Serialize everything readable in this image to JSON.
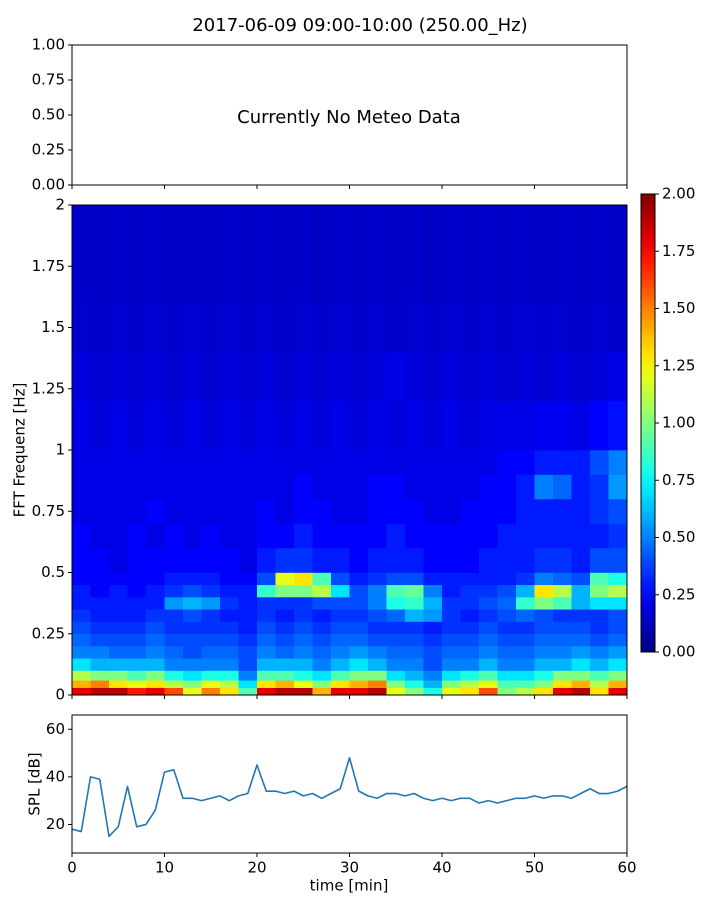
{
  "chart_data": [
    {
      "type": "annotation",
      "title": "2017-06-09 09:00-10:00 (250.00_Hz)",
      "annotation": "Currently No Meteo Data",
      "xlim": [
        0,
        60
      ],
      "xticks": [
        0,
        10,
        20,
        30,
        40,
        50,
        60
      ],
      "ylim": [
        0,
        1
      ],
      "yticks": [
        {
          "value": 0,
          "label": "0.00"
        },
        {
          "value": 0.25,
          "label": "0.25"
        },
        {
          "value": 0.5,
          "label": "0.50"
        },
        {
          "value": 0.75,
          "label": "0.75"
        },
        {
          "value": 1,
          "label": "1.00"
        }
      ]
    },
    {
      "type": "heatmap",
      "y_label": "FFT Frequenz [Hz]",
      "colormap": "jet",
      "xlim": [
        0,
        60
      ],
      "xticks": [
        0,
        10,
        20,
        30,
        40,
        50,
        60
      ],
      "ylim": [
        0,
        2
      ],
      "yticks": [
        0,
        0.25,
        0.5,
        0.75,
        1,
        1.25,
        1.5,
        1.75,
        2
      ],
      "x_bins": [
        0,
        2,
        4,
        6,
        8,
        10,
        12,
        14,
        16,
        18,
        20,
        22,
        24,
        26,
        28,
        30,
        32,
        34,
        36,
        38,
        40,
        42,
        44,
        46,
        48,
        50,
        52,
        54,
        56,
        58,
        60
      ],
      "y_bins": [
        0,
        0.03,
        0.06,
        0.1,
        0.15,
        0.2,
        0.25,
        0.3,
        0.35,
        0.4,
        0.45,
        0.5,
        0.6,
        0.7,
        0.8,
        0.9,
        1.0,
        1.2,
        1.4,
        1.6,
        2.0
      ],
      "clim": [
        0,
        2
      ],
      "cticks": [
        {
          "value": 0,
          "label": "0.00"
        },
        {
          "value": 0.25,
          "label": "0.25"
        },
        {
          "value": 0.5,
          "label": "0.50"
        },
        {
          "value": 0.75,
          "label": "0.75"
        },
        {
          "value": 1,
          "label": "1.00"
        },
        {
          "value": 1.25,
          "label": "1.25"
        },
        {
          "value": 1.5,
          "label": "1.50"
        },
        {
          "value": 1.75,
          "label": "1.75"
        },
        {
          "value": 2,
          "label": "2.00"
        }
      ],
      "values": [
        [
          1.8,
          1.9,
          1.9,
          1.7,
          1.8,
          1.6,
          1.2,
          1.5,
          1.3,
          0.9,
          1.8,
          1.9,
          1.9,
          1.4,
          1.8,
          1.8,
          1.9,
          1.2,
          1.0,
          0.8,
          1.2,
          1.3,
          1.6,
          1.0,
          1.1,
          1.3,
          1.8,
          1.9,
          1.3,
          1.8
        ],
        [
          1.4,
          1.5,
          1.3,
          1.2,
          1.3,
          1.1,
          1.0,
          1.2,
          1.1,
          0.7,
          1.3,
          1.4,
          1.2,
          1.0,
          1.3,
          1.4,
          1.5,
          1.0,
          0.8,
          0.6,
          1.0,
          1.1,
          1.2,
          0.9,
          0.9,
          1.0,
          1.3,
          1.4,
          1.1,
          1.4
        ],
        [
          1.1,
          1.0,
          1.0,
          0.9,
          1.0,
          0.8,
          0.7,
          0.8,
          0.8,
          0.5,
          0.9,
          0.9,
          0.8,
          0.7,
          0.9,
          1.0,
          1.0,
          0.7,
          0.6,
          0.5,
          0.7,
          0.8,
          0.9,
          0.7,
          0.7,
          0.8,
          1.0,
          1.0,
          0.9,
          1.0
        ],
        [
          0.7,
          0.6,
          0.6,
          0.6,
          0.6,
          0.5,
          0.5,
          0.5,
          0.5,
          0.4,
          0.6,
          0.6,
          0.6,
          0.5,
          0.6,
          0.7,
          0.6,
          0.5,
          0.5,
          0.4,
          0.5,
          0.5,
          0.6,
          0.5,
          0.5,
          0.6,
          0.6,
          0.7,
          0.6,
          0.7
        ],
        [
          0.5,
          0.5,
          0.45,
          0.45,
          0.5,
          0.45,
          0.4,
          0.45,
          0.45,
          0.4,
          0.5,
          0.45,
          0.5,
          0.45,
          0.5,
          0.55,
          0.5,
          0.45,
          0.45,
          0.4,
          0.45,
          0.45,
          0.5,
          0.45,
          0.45,
          0.5,
          0.5,
          0.55,
          0.5,
          0.55
        ],
        [
          0.45,
          0.4,
          0.4,
          0.4,
          0.45,
          0.4,
          0.4,
          0.4,
          0.4,
          0.35,
          0.45,
          0.4,
          0.45,
          0.4,
          0.45,
          0.45,
          0.4,
          0.4,
          0.4,
          0.35,
          0.4,
          0.4,
          0.45,
          0.4,
          0.4,
          0.45,
          0.45,
          0.45,
          0.4,
          0.45
        ],
        [
          0.4,
          0.35,
          0.35,
          0.35,
          0.4,
          0.35,
          0.35,
          0.35,
          0.35,
          0.3,
          0.4,
          0.35,
          0.4,
          0.35,
          0.4,
          0.4,
          0.35,
          0.35,
          0.35,
          0.3,
          0.35,
          0.35,
          0.4,
          0.35,
          0.35,
          0.4,
          0.4,
          0.4,
          0.35,
          0.4
        ],
        [
          0.35,
          0.3,
          0.3,
          0.3,
          0.35,
          0.35,
          0.4,
          0.35,
          0.3,
          0.3,
          0.35,
          0.3,
          0.35,
          0.3,
          0.35,
          0.35,
          0.4,
          0.45,
          0.6,
          0.55,
          0.35,
          0.3,
          0.35,
          0.4,
          0.45,
          0.4,
          0.35,
          0.35,
          0.35,
          0.4
        ],
        [
          0.3,
          0.3,
          0.3,
          0.3,
          0.3,
          0.55,
          0.6,
          0.55,
          0.35,
          0.3,
          0.35,
          0.35,
          0.35,
          0.4,
          0.4,
          0.4,
          0.5,
          0.8,
          0.85,
          0.6,
          0.35,
          0.35,
          0.4,
          0.45,
          0.85,
          1.0,
          0.9,
          0.6,
          0.7,
          0.7
        ],
        [
          0.3,
          0.25,
          0.3,
          0.25,
          0.3,
          0.35,
          0.4,
          0.35,
          0.3,
          0.3,
          0.85,
          1.0,
          1.0,
          1.1,
          0.7,
          0.4,
          0.5,
          0.9,
          0.95,
          0.5,
          0.3,
          0.35,
          0.35,
          0.4,
          0.6,
          1.3,
          1.1,
          0.6,
          1.0,
          1.1
        ],
        [
          0.25,
          0.25,
          0.25,
          0.25,
          0.25,
          0.3,
          0.3,
          0.3,
          0.25,
          0.25,
          0.4,
          1.2,
          1.3,
          0.9,
          0.4,
          0.3,
          0.35,
          0.4,
          0.4,
          0.3,
          0.3,
          0.3,
          0.3,
          0.3,
          0.35,
          0.5,
          0.45,
          0.4,
          0.9,
          0.8
        ],
        [
          0.25,
          0.25,
          0.2,
          0.25,
          0.25,
          0.25,
          0.25,
          0.25,
          0.25,
          0.2,
          0.3,
          0.35,
          0.35,
          0.3,
          0.3,
          0.25,
          0.3,
          0.3,
          0.3,
          0.25,
          0.25,
          0.25,
          0.3,
          0.3,
          0.3,
          0.35,
          0.35,
          0.3,
          0.4,
          0.4
        ],
        [
          0.25,
          0.2,
          0.2,
          0.25,
          0.2,
          0.25,
          0.2,
          0.25,
          0.2,
          0.2,
          0.25,
          0.25,
          0.3,
          0.25,
          0.25,
          0.25,
          0.25,
          0.3,
          0.25,
          0.25,
          0.25,
          0.25,
          0.25,
          0.3,
          0.3,
          0.3,
          0.3,
          0.3,
          0.3,
          0.35
        ],
        [
          0.2,
          0.2,
          0.2,
          0.2,
          0.25,
          0.2,
          0.2,
          0.2,
          0.2,
          0.2,
          0.25,
          0.2,
          0.25,
          0.25,
          0.2,
          0.2,
          0.25,
          0.25,
          0.25,
          0.2,
          0.2,
          0.25,
          0.25,
          0.25,
          0.3,
          0.3,
          0.3,
          0.3,
          0.35,
          0.4
        ],
        [
          0.2,
          0.2,
          0.2,
          0.2,
          0.2,
          0.2,
          0.2,
          0.2,
          0.2,
          0.2,
          0.2,
          0.2,
          0.25,
          0.2,
          0.2,
          0.2,
          0.25,
          0.25,
          0.2,
          0.2,
          0.2,
          0.2,
          0.25,
          0.25,
          0.3,
          0.5,
          0.45,
          0.3,
          0.35,
          0.55
        ],
        [
          0.2,
          0.2,
          0.2,
          0.2,
          0.2,
          0.2,
          0.2,
          0.2,
          0.2,
          0.2,
          0.2,
          0.2,
          0.2,
          0.2,
          0.2,
          0.2,
          0.2,
          0.2,
          0.2,
          0.2,
          0.2,
          0.2,
          0.2,
          0.25,
          0.25,
          0.3,
          0.3,
          0.3,
          0.4,
          0.5
        ],
        [
          0.2,
          0.18,
          0.2,
          0.18,
          0.2,
          0.18,
          0.2,
          0.18,
          0.2,
          0.18,
          0.2,
          0.18,
          0.2,
          0.18,
          0.2,
          0.18,
          0.2,
          0.18,
          0.2,
          0.18,
          0.2,
          0.18,
          0.2,
          0.2,
          0.2,
          0.22,
          0.22,
          0.2,
          0.25,
          0.28
        ],
        [
          0.18,
          0.16,
          0.18,
          0.16,
          0.18,
          0.16,
          0.18,
          0.16,
          0.18,
          0.16,
          0.18,
          0.16,
          0.18,
          0.16,
          0.18,
          0.16,
          0.18,
          0.2,
          0.18,
          0.16,
          0.18,
          0.16,
          0.18,
          0.16,
          0.18,
          0.16,
          0.18,
          0.16,
          0.18,
          0.2
        ],
        [
          0.16,
          0.15,
          0.16,
          0.15,
          0.16,
          0.15,
          0.16,
          0.15,
          0.16,
          0.15,
          0.16,
          0.15,
          0.16,
          0.15,
          0.16,
          0.15,
          0.16,
          0.15,
          0.16,
          0.15,
          0.16,
          0.15,
          0.16,
          0.15,
          0.16,
          0.15,
          0.16,
          0.15,
          0.16,
          0.15
        ],
        [
          0.15,
          0.14,
          0.15,
          0.14,
          0.15,
          0.14,
          0.15,
          0.14,
          0.15,
          0.14,
          0.15,
          0.14,
          0.15,
          0.14,
          0.15,
          0.14,
          0.15,
          0.14,
          0.15,
          0.14,
          0.15,
          0.14,
          0.15,
          0.14,
          0.15,
          0.14,
          0.15,
          0.14,
          0.15,
          0.14
        ]
      ]
    },
    {
      "type": "line",
      "x_label": "time [min]",
      "y_label": "SPL [dB]",
      "xlim": [
        0,
        60
      ],
      "xticks": [
        0,
        10,
        20,
        30,
        40,
        50,
        60
      ],
      "ylim": [
        8,
        66
      ],
      "yticks": [
        20,
        40,
        60
      ],
      "x": [
        0,
        1,
        2,
        3,
        4,
        5,
        6,
        7,
        8,
        9,
        10,
        11,
        12,
        13,
        14,
        15,
        16,
        17,
        18,
        19,
        20,
        21,
        22,
        23,
        24,
        25,
        26,
        27,
        28,
        29,
        30,
        31,
        32,
        33,
        34,
        35,
        36,
        37,
        38,
        39,
        40,
        41,
        42,
        43,
        44,
        45,
        46,
        47,
        48,
        49,
        50,
        51,
        52,
        53,
        54,
        55,
        56,
        57,
        58,
        59,
        60
      ],
      "series": [
        {
          "color": "#1f77b4",
          "values": [
            18,
            17,
            40,
            39,
            15,
            19,
            36,
            19,
            20,
            26,
            42,
            43,
            31,
            31,
            30,
            31,
            32,
            30,
            32,
            33,
            45,
            34,
            34,
            33,
            34,
            32,
            33,
            31,
            33,
            35,
            48,
            34,
            32,
            31,
            33,
            33,
            32,
            33,
            31,
            30,
            31,
            30,
            31,
            31,
            29,
            30,
            29,
            30,
            31,
            31,
            32,
            31,
            32,
            32,
            31,
            33,
            35,
            33,
            33,
            34,
            36
          ]
        }
      ]
    }
  ]
}
